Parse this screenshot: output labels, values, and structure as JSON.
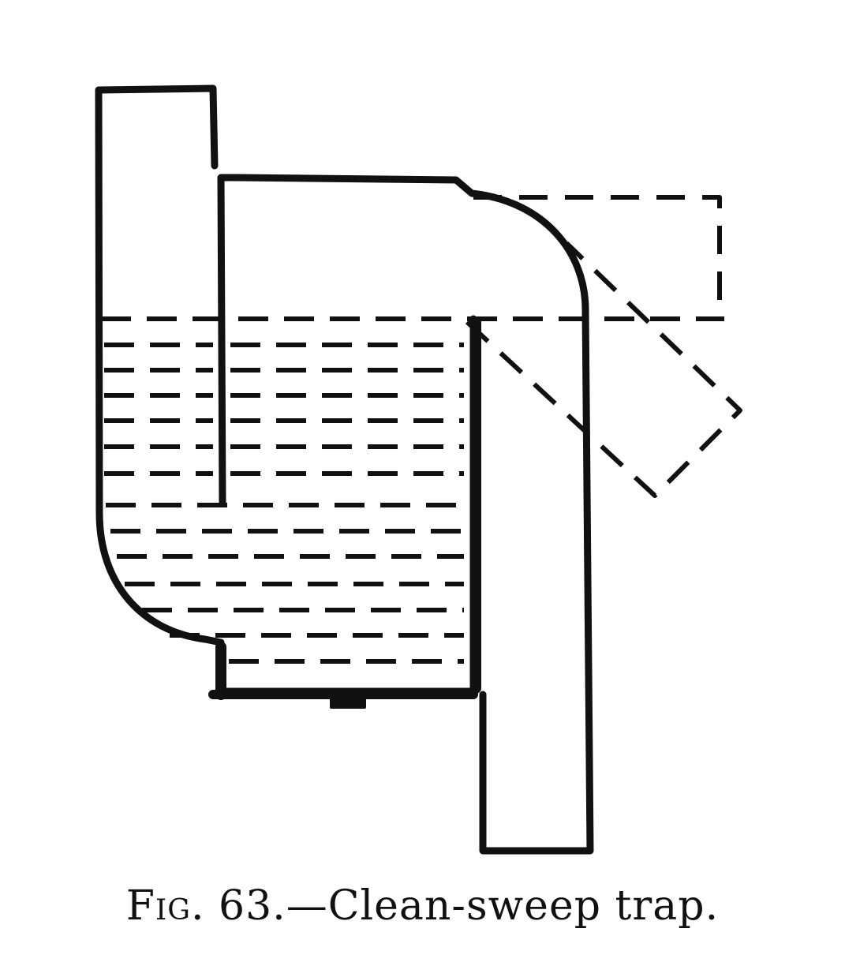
{
  "figure": {
    "caption_prefix": "Fig.",
    "caption_number": "63.",
    "caption_text": "—Clean-sweep trap."
  },
  "colors": {
    "ink": "#111111",
    "paper": "#ffffff"
  }
}
